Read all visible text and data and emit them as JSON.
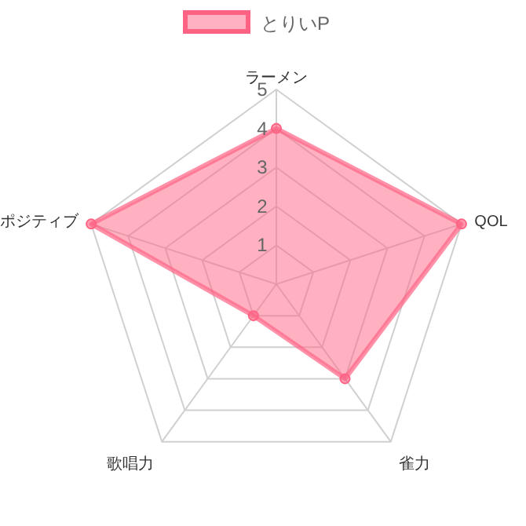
{
  "chart_data": {
    "type": "radar",
    "categories": [
      "ラーメン",
      "QOL",
      "雀力",
      "歌唱力",
      "ポジティブ"
    ],
    "series": [
      {
        "name": "とりいP",
        "color": "#ff6384",
        "values": [
          4,
          5,
          3,
          1,
          5
        ]
      }
    ],
    "ylim": [
      0,
      5
    ],
    "yticks": [
      1,
      2,
      3,
      4,
      5
    ],
    "grid": true,
    "legend": "top",
    "marker": "circle"
  }
}
